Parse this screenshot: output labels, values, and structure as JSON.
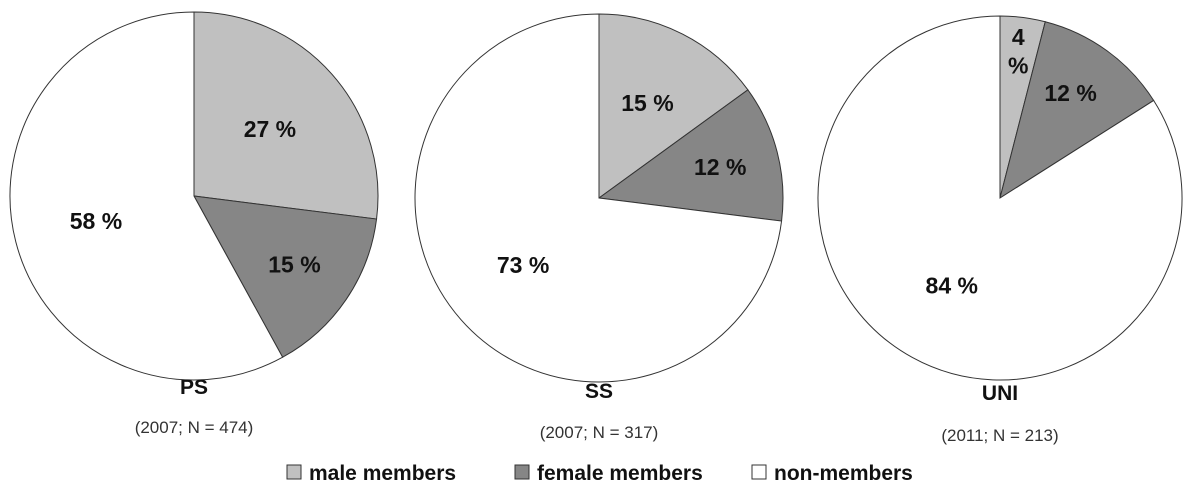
{
  "chart_data": [
    {
      "type": "pie",
      "title": "PS",
      "subtitle": "(2007; N = 474)",
      "categories": [
        "male members",
        "female members",
        "non-members"
      ],
      "values": [
        27,
        15,
        58
      ],
      "labels": [
        "27 %",
        "15 %",
        "58 %"
      ]
    },
    {
      "type": "pie",
      "title": "SS",
      "subtitle": "(2007; N = 317)",
      "categories": [
        "male members",
        "female members",
        "non-members"
      ],
      "values": [
        15,
        12,
        73
      ],
      "labels": [
        "15 %",
        "12 %",
        "73 %"
      ]
    },
    {
      "type": "pie",
      "title": "UNI",
      "subtitle": "(2011; N = 213)",
      "categories": [
        "male members",
        "female members",
        "non-members"
      ],
      "values": [
        4,
        12,
        84
      ],
      "labels": [
        "4 %",
        "12 %",
        "84 %"
      ]
    }
  ],
  "legend": {
    "placement": "bottom",
    "items": [
      {
        "label": "male members",
        "color": "#c0c0c0"
      },
      {
        "label": "female members",
        "color": "#868686"
      },
      {
        "label": "non-members",
        "color": "#ffffff"
      }
    ]
  },
  "colors": {
    "male": "#c0c0c0",
    "female": "#868686",
    "non": "#ffffff",
    "stroke": "#333333"
  }
}
